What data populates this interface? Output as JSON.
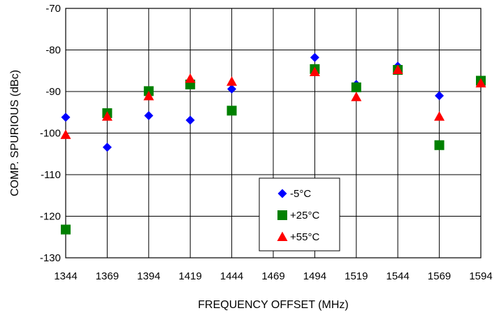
{
  "chart_data": {
    "type": "scatter",
    "xlabel": "FREQUENCY OFFSET (MHz)",
    "ylabel": "COMP. SPURIOUS (dBc)",
    "x_ticks": [
      1344,
      1369,
      1394,
      1419,
      1444,
      1469,
      1494,
      1519,
      1544,
      1569,
      1594
    ],
    "y_ticks": [
      -130,
      -120,
      -110,
      -100,
      -90,
      -80,
      -70
    ],
    "xlim": [
      1344,
      1594
    ],
    "ylim": [
      -130,
      -70
    ],
    "grid": true,
    "legend_position": "bottom-center",
    "series": [
      {
        "name": "-5°C",
        "marker": "diamond",
        "color": "#0000ff",
        "x": [
          1344,
          1369,
          1394,
          1419,
          1444,
          1494,
          1519,
          1544,
          1569
        ],
        "y": [
          -96.2,
          -103.4,
          -95.8,
          -96.9,
          -89.4,
          -81.8,
          -88.3,
          -83.9,
          -91.0
        ]
      },
      {
        "name": "+25°C",
        "marker": "square",
        "color": "#008000",
        "x": [
          1344,
          1369,
          1394,
          1419,
          1444,
          1494,
          1519,
          1544,
          1569,
          1594
        ],
        "y": [
          -123.2,
          -95.2,
          -89.9,
          -88.3,
          -94.6,
          -84.6,
          -89.0,
          -84.8,
          -102.9,
          -87.4
        ]
      },
      {
        "name": "+55°C",
        "marker": "triangle",
        "color": "#ff0000",
        "x": [
          1344,
          1369,
          1394,
          1419,
          1444,
          1494,
          1519,
          1544,
          1569,
          1594
        ],
        "y": [
          -100.4,
          -96.0,
          -91.1,
          -86.9,
          -87.6,
          -85.3,
          -91.3,
          -84.8,
          -96.0,
          -88.0
        ]
      }
    ]
  }
}
